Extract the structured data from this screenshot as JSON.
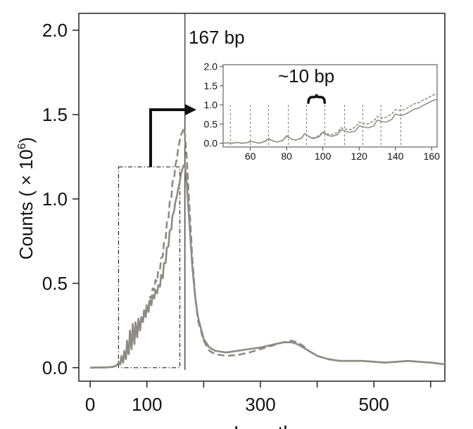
{
  "chart_data": {
    "type": "line",
    "xlabel": "Length",
    "ylabel": "Counts",
    "ylabel_unit": "( × 10",
    "ylabel_exponent": "6",
    "ylabel_close": ")",
    "xlim": [
      -20,
      625
    ],
    "ylim": [
      -0.08,
      2.1
    ],
    "x_ticks": [
      0,
      100,
      300,
      500
    ],
    "x_minor_ticks": [
      200,
      400,
      600
    ],
    "y_ticks": [
      0.0,
      0.5,
      1.0,
      1.5,
      2.0
    ],
    "y_tick_labels": [
      "0.0",
      "0.5",
      "1.0",
      "1.5",
      "2.0"
    ],
    "x_tick_labels": [
      "0",
      "100",
      "300",
      "500"
    ],
    "annotations": {
      "peak_label": "167 bp",
      "peak_x": 167,
      "periodicity_label": "~10 bp",
      "box_x_range": [
        50,
        158
      ],
      "box_y_range": [
        0.0,
        1.19
      ]
    },
    "series": [
      {
        "style": "solid",
        "x": [
          0,
          30,
          40,
          45,
          48,
          50,
          53,
          55,
          58,
          60,
          63,
          65,
          68,
          70,
          73,
          75,
          78,
          80,
          83,
          85,
          88,
          90,
          93,
          95,
          98,
          100,
          103,
          105,
          108,
          110,
          113,
          115,
          118,
          120,
          123,
          125,
          128,
          130,
          133,
          135,
          138,
          140,
          143,
          145,
          148,
          150,
          153,
          155,
          158,
          160,
          163,
          165,
          167,
          170,
          175,
          180,
          185,
          190,
          200,
          210,
          220,
          240,
          260,
          280,
          300,
          320,
          340,
          355,
          365,
          375,
          385,
          400,
          420,
          440,
          460,
          480,
          500,
          520,
          540,
          560,
          580,
          600,
          625
        ],
        "y": [
          0,
          0.002,
          0.005,
          0.01,
          0.02,
          0.03,
          0.02,
          0.07,
          0.03,
          0.1,
          0.05,
          0.16,
          0.08,
          0.22,
          0.11,
          0.26,
          0.14,
          0.27,
          0.18,
          0.29,
          0.22,
          0.3,
          0.27,
          0.33,
          0.3,
          0.36,
          0.33,
          0.4,
          0.37,
          0.43,
          0.41,
          0.46,
          0.44,
          0.49,
          0.48,
          0.55,
          0.53,
          0.62,
          0.62,
          0.71,
          0.72,
          0.81,
          0.82,
          0.9,
          0.93,
          0.98,
          1.02,
          1.06,
          1.1,
          1.15,
          1.18,
          1.2,
          1.2,
          1.1,
          0.85,
          0.6,
          0.42,
          0.3,
          0.17,
          0.12,
          0.1,
          0.09,
          0.1,
          0.11,
          0.12,
          0.135,
          0.15,
          0.15,
          0.14,
          0.12,
          0.1,
          0.07,
          0.05,
          0.04,
          0.04,
          0.04,
          0.035,
          0.03,
          0.035,
          0.04,
          0.035,
          0.03,
          0.02
        ]
      },
      {
        "style": "dashed",
        "x": [
          0,
          30,
          40,
          45,
          48,
          50,
          53,
          55,
          58,
          60,
          63,
          65,
          68,
          70,
          73,
          75,
          78,
          80,
          83,
          85,
          88,
          90,
          93,
          95,
          98,
          100,
          103,
          105,
          108,
          110,
          113,
          115,
          118,
          120,
          123,
          125,
          128,
          130,
          133,
          135,
          138,
          140,
          143,
          145,
          148,
          150,
          153,
          155,
          158,
          160,
          163,
          165,
          167,
          170,
          175,
          180,
          185,
          190,
          200,
          210,
          220,
          240,
          260,
          280,
          300,
          320,
          340,
          355,
          365,
          375,
          385,
          400,
          420,
          440,
          460,
          480,
          500,
          520,
          540,
          560,
          580,
          600,
          625
        ],
        "y": [
          0,
          0.002,
          0.005,
          0.01,
          0.02,
          0.03,
          0.02,
          0.06,
          0.03,
          0.09,
          0.05,
          0.14,
          0.08,
          0.2,
          0.11,
          0.24,
          0.14,
          0.26,
          0.18,
          0.28,
          0.23,
          0.3,
          0.28,
          0.34,
          0.32,
          0.38,
          0.36,
          0.42,
          0.41,
          0.47,
          0.46,
          0.52,
          0.51,
          0.58,
          0.58,
          0.65,
          0.66,
          0.74,
          0.76,
          0.86,
          0.88,
          0.98,
          1.0,
          1.1,
          1.12,
          1.2,
          1.24,
          1.3,
          1.35,
          1.38,
          1.4,
          1.42,
          1.38,
          1.25,
          0.95,
          0.65,
          0.42,
          0.28,
          0.16,
          0.1,
          0.08,
          0.07,
          0.075,
          0.09,
          0.11,
          0.13,
          0.15,
          0.16,
          0.15,
          0.13,
          0.1,
          0.07,
          0.05,
          0.04,
          0.04,
          0.04,
          0.035,
          0.03,
          0.035,
          0.04,
          0.035,
          0.03,
          0.02
        ]
      }
    ],
    "inset": {
      "xlim": [
        45,
        163
      ],
      "ylim": [
        -0.1,
        2.05
      ],
      "x_ticks": [
        60,
        80,
        100,
        120,
        140,
        160
      ],
      "x_tick_labels": [
        "60",
        "80",
        "100",
        "120",
        "140",
        "160"
      ],
      "y_ticks": [
        0.0,
        0.5,
        1.0,
        1.5,
        2.0
      ],
      "y_tick_labels": [
        "0.0",
        "0.5",
        "1.0",
        "1.5",
        "2.0"
      ],
      "vlines": [
        49,
        60,
        70,
        81,
        91,
        101,
        112,
        122,
        132,
        143
      ],
      "brace_x_range": [
        92,
        101
      ],
      "series": [
        {
          "style": "solid",
          "x": [
            45,
            48,
            50,
            53,
            55,
            58,
            60,
            63,
            65,
            68,
            70,
            73,
            75,
            78,
            80,
            83,
            85,
            88,
            90,
            93,
            95,
            98,
            100,
            103,
            105,
            108,
            110,
            113,
            115,
            118,
            120,
            123,
            125,
            128,
            130,
            133,
            135,
            138,
            140,
            143,
            145,
            148,
            150,
            153,
            155,
            158,
            160,
            163
          ],
          "y": [
            0.0,
            0.01,
            0.0,
            0.02,
            0.0,
            0.01,
            0.05,
            0.02,
            0.0,
            0.05,
            0.12,
            0.05,
            0.03,
            0.08,
            0.2,
            0.1,
            0.08,
            0.12,
            0.25,
            0.15,
            0.12,
            0.17,
            0.28,
            0.2,
            0.18,
            0.22,
            0.35,
            0.3,
            0.28,
            0.32,
            0.45,
            0.42,
            0.4,
            0.45,
            0.6,
            0.56,
            0.55,
            0.62,
            0.76,
            0.72,
            0.75,
            0.82,
            0.88,
            0.92,
            0.98,
            1.05,
            1.1,
            1.15
          ]
        },
        {
          "style": "dashed",
          "x": [
            45,
            48,
            50,
            53,
            55,
            58,
            60,
            63,
            65,
            68,
            70,
            73,
            75,
            78,
            80,
            83,
            85,
            88,
            90,
            93,
            95,
            98,
            100,
            103,
            105,
            108,
            110,
            113,
            115,
            118,
            120,
            123,
            125,
            128,
            130,
            133,
            135,
            138,
            140,
            143,
            145,
            148,
            150,
            153,
            155,
            158,
            160,
            163
          ],
          "y": [
            0.0,
            0.01,
            0.0,
            0.02,
            0.0,
            0.01,
            0.04,
            0.02,
            0.0,
            0.04,
            0.1,
            0.05,
            0.03,
            0.07,
            0.18,
            0.1,
            0.08,
            0.13,
            0.24,
            0.16,
            0.14,
            0.2,
            0.3,
            0.23,
            0.22,
            0.28,
            0.4,
            0.36,
            0.35,
            0.42,
            0.55,
            0.5,
            0.5,
            0.58,
            0.7,
            0.66,
            0.68,
            0.76,
            0.88,
            0.85,
            0.88,
            0.96,
            1.02,
            1.06,
            1.12,
            1.18,
            1.24,
            1.3
          ]
        }
      ]
    }
  }
}
